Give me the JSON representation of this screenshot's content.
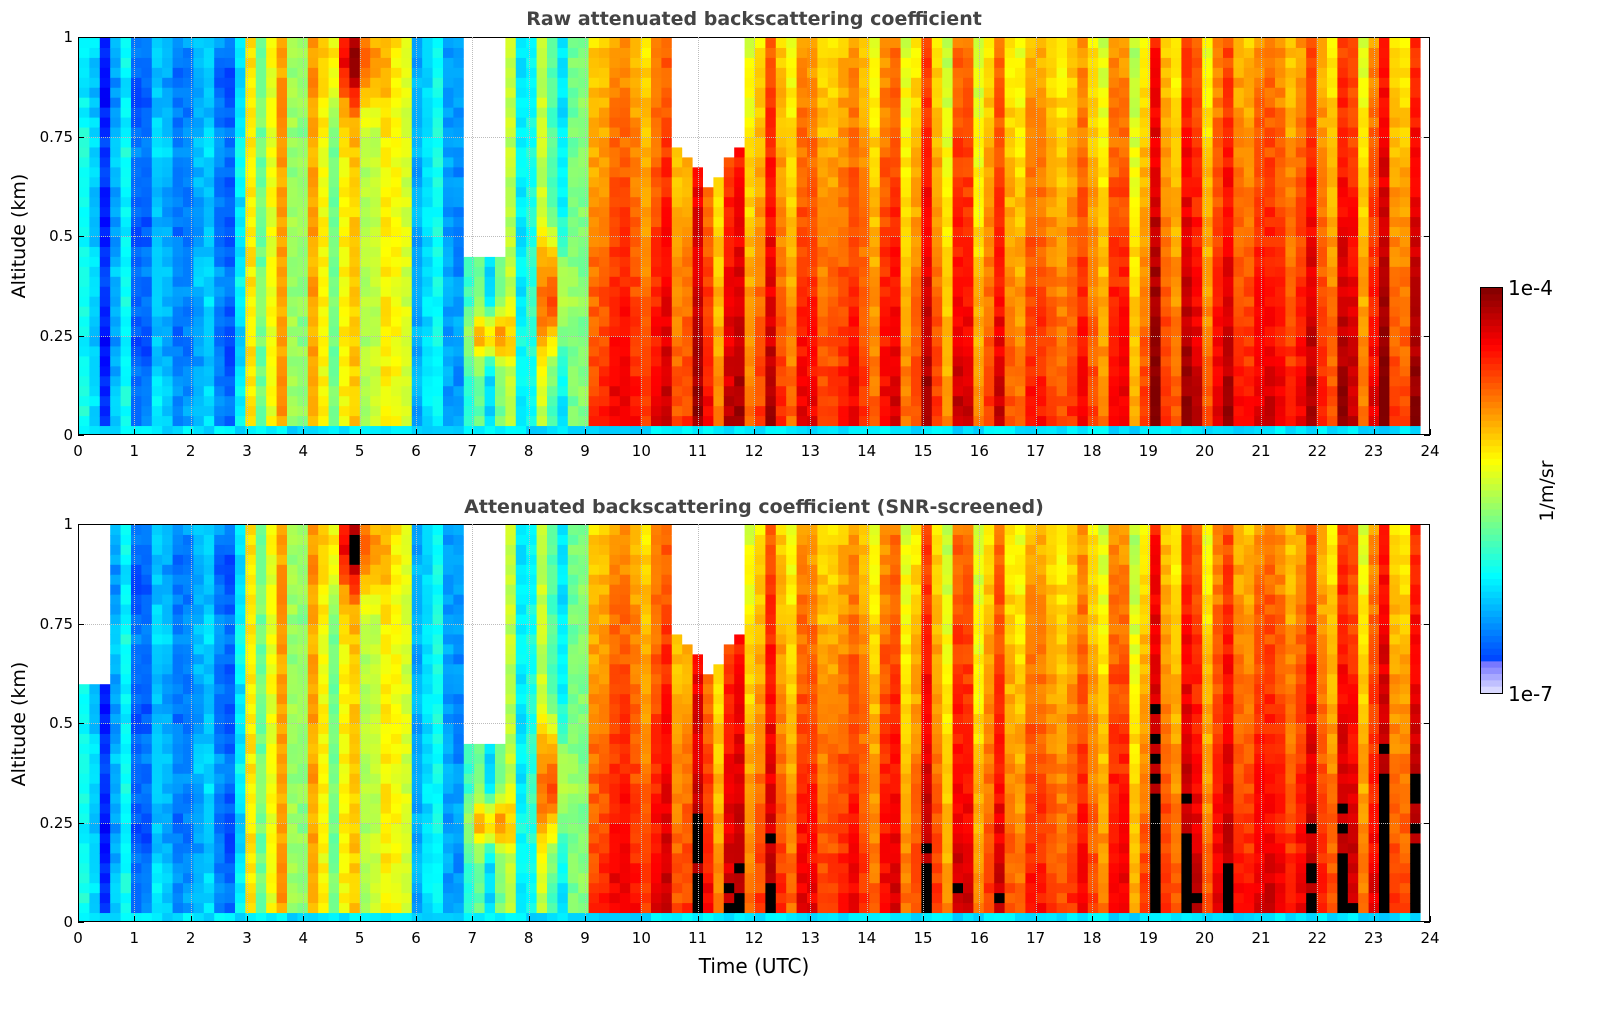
{
  "chart_data": [
    {
      "type": "heatmap",
      "title": "Raw attenuated backscattering coefficient",
      "xlabel": "",
      "ylabel": "Altitude (km)",
      "xlim": [
        0,
        24
      ],
      "ylim": [
        0,
        1
      ],
      "xticks": [
        "0",
        "1",
        "2",
        "3",
        "4",
        "5",
        "6",
        "7",
        "8",
        "9",
        "10",
        "11",
        "12",
        "13",
        "14",
        "15",
        "16",
        "17",
        "18",
        "19",
        "20",
        "21",
        "22",
        "23",
        "24"
      ],
      "yticks": [
        "0",
        "0.25",
        "0.5",
        "0.75",
        "1"
      ],
      "grid": true,
      "colormap": "jet",
      "screened": false
    },
    {
      "type": "heatmap",
      "title": "Attenuated backscattering coefficient (SNR-screened)",
      "xlabel": "Time (UTC)",
      "ylabel": "Altitude (km)",
      "xlim": [
        0,
        24
      ],
      "ylim": [
        0,
        1
      ],
      "xticks": [
        "0",
        "1",
        "2",
        "3",
        "4",
        "5",
        "6",
        "7",
        "8",
        "9",
        "10",
        "11",
        "12",
        "13",
        "14",
        "15",
        "16",
        "17",
        "18",
        "19",
        "20",
        "21",
        "22",
        "23",
        "24"
      ],
      "yticks": [
        "0",
        "0.25",
        "0.5",
        "0.75",
        "1"
      ],
      "grid": true,
      "colormap": "jet",
      "screened": true
    }
  ],
  "colorbar": {
    "max_label": "1e-4",
    "min_label": "1e-7",
    "units": "1/m/sr",
    "scale": "log",
    "range": [
      1e-07,
      0.0001
    ]
  }
}
